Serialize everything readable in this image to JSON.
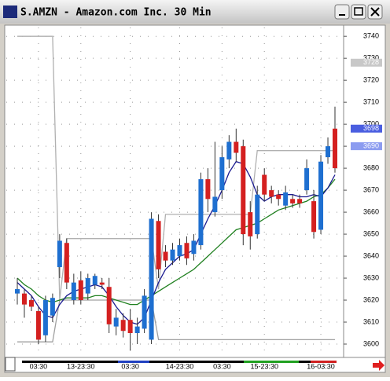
{
  "window": {
    "title": "S.AMZN - Amazon.com Inc. 30 Min"
  },
  "chart_data": {
    "type": "candlestick",
    "categories": [
      null,
      null,
      null,
      "03:30",
      null,
      null,
      null,
      null,
      null,
      "13-23:30",
      null,
      null,
      null,
      null,
      null,
      null,
      "03:30",
      null,
      null,
      null,
      null,
      null,
      null,
      "14-23:30",
      null,
      null,
      null,
      null,
      null,
      "03:30",
      null,
      null,
      null,
      null,
      null,
      "15-23:30",
      null,
      null,
      null,
      null,
      null,
      null,
      null,
      "16-03:30",
      null,
      null
    ],
    "open": [
      3623,
      3623,
      3620,
      3615,
      3604,
      3613,
      3635,
      3646,
      3620,
      3629,
      3623,
      3627,
      3628,
      3626,
      3608,
      3611,
      3611,
      3605,
      3607,
      3602,
      3656,
      3642,
      3638,
      3640,
      3646,
      3641,
      3645,
      3675,
      3660,
      3670,
      3684,
      3692,
      3690,
      3660,
      3650,
      3677,
      3670,
      3668,
      3663,
      3666,
      3666,
      3670,
      3665,
      3652,
      3685,
      3698
    ],
    "high": [
      3630,
      3625,
      3622,
      3617,
      3622,
      3623,
      3650,
      3648,
      3632,
      3633,
      3632,
      3632,
      3630,
      3630,
      3616,
      3614,
      3616,
      3612,
      3625,
      3660,
      3659,
      3645,
      3646,
      3648,
      3649,
      3650,
      3678,
      3680,
      3692,
      3690,
      3695,
      3698,
      3693,
      3665,
      3672,
      3680,
      3672,
      3670,
      3672,
      3668,
      3668,
      3684,
      3670,
      3686,
      3694,
      3708
    ],
    "low": [
      3618,
      3612,
      3615,
      3600,
      3601,
      3610,
      3630,
      3625,
      3618,
      3618,
      3620,
      3625,
      3625,
      3605,
      3604,
      3603,
      3597,
      3600,
      3605,
      3600,
      3630,
      3635,
      3636,
      3638,
      3636,
      3638,
      3643,
      3660,
      3658,
      3666,
      3680,
      3683,
      3645,
      3643,
      3648,
      3665,
      3664,
      3663,
      3661,
      3662,
      3662,
      3668,
      3648,
      3650,
      3682,
      3678
    ],
    "close": [
      3625,
      3618,
      3617,
      3602,
      3620,
      3621,
      3647,
      3628,
      3628,
      3620,
      3630,
      3631,
      3627,
      3609,
      3612,
      3606,
      3605,
      3608,
      3622,
      3657,
      3634,
      3638,
      3643,
      3645,
      3639,
      3647,
      3675,
      3666,
      3667,
      3685,
      3692,
      3687,
      3650,
      3649,
      3668,
      3668,
      3667,
      3666,
      3669,
      3664,
      3664,
      3680,
      3651,
      3683,
      3690,
      3680
    ],
    "up_color": "#1e6fd0",
    "down_color": "#d42020",
    "series": [
      {
        "color": "#b0b0b0",
        "values": [
          3740,
          3740,
          3740,
          3740,
          3740,
          3740,
          3620,
          3648,
          3648,
          3648,
          3648,
          3648,
          3648,
          3648,
          3648,
          3648,
          3648,
          3648,
          3648,
          3648,
          3625,
          3659,
          3659,
          3659,
          3659,
          3659,
          3659,
          3659,
          3659,
          3659,
          3659,
          3659,
          3659,
          3659,
          3688,
          3688,
          3688,
          3688,
          3688,
          3688,
          3688,
          3688,
          3688,
          3688,
          3688,
          3688
        ]
      },
      {
        "color": "#a0a0a0",
        "values": [
          3601,
          3601,
          3601,
          3601,
          3601,
          3601,
          3620,
          3620,
          3620,
          3620,
          3620,
          3620,
          3620,
          3620,
          3620,
          3620,
          3620,
          3620,
          3620,
          3620,
          3602,
          3602,
          3602,
          3602,
          3602,
          3602,
          3602,
          3602,
          3602,
          3602,
          3602,
          3602,
          3602,
          3602,
          3602,
          3602,
          3602,
          3602,
          3602,
          3602,
          3602,
          3602,
          3602,
          3602,
          3602,
          3602
        ]
      },
      {
        "color": "#208020",
        "values": [
          3630,
          3627,
          3625,
          3622,
          3620,
          3619,
          3620,
          3621,
          3621,
          3621,
          3621,
          3622,
          3622,
          3621,
          3620,
          3619,
          3618,
          3618,
          3620,
          3622,
          3624,
          3626,
          3628,
          3630,
          3632,
          3634,
          3637,
          3640,
          3643,
          3646,
          3649,
          3652,
          3653,
          3654,
          3655,
          3657,
          3659,
          3661,
          3662,
          3663,
          3664,
          3665,
          3667,
          3668,
          3671,
          3675
        ]
      },
      {
        "color": "#1a1a90",
        "values": [
          3628,
          3625,
          3622,
          3617,
          3613,
          3612,
          3618,
          3622,
          3624,
          3625,
          3626,
          3627,
          3626,
          3622,
          3617,
          3613,
          3610,
          3609,
          3612,
          3620,
          3628,
          3634,
          3637,
          3640,
          3641,
          3643,
          3650,
          3657,
          3663,
          3670,
          3678,
          3683,
          3682,
          3676,
          3668,
          3665,
          3667,
          3668,
          3668,
          3668,
          3667,
          3667,
          3668,
          3667,
          3671,
          3677
        ]
      }
    ],
    "price_markers": [
      {
        "value": 3728,
        "color": "#c8c8c8"
      },
      {
        "value": 3698,
        "color": "#4a5ee0"
      },
      {
        "value": 3690,
        "color": "#8c9cf0"
      }
    ],
    "ylim": [
      3595,
      3744
    ],
    "yticks": [
      3600,
      3610,
      3620,
      3630,
      3640,
      3650,
      3660,
      3670,
      3680,
      3690,
      3700,
      3710,
      3720,
      3730,
      3740
    ],
    "grid": true
  }
}
